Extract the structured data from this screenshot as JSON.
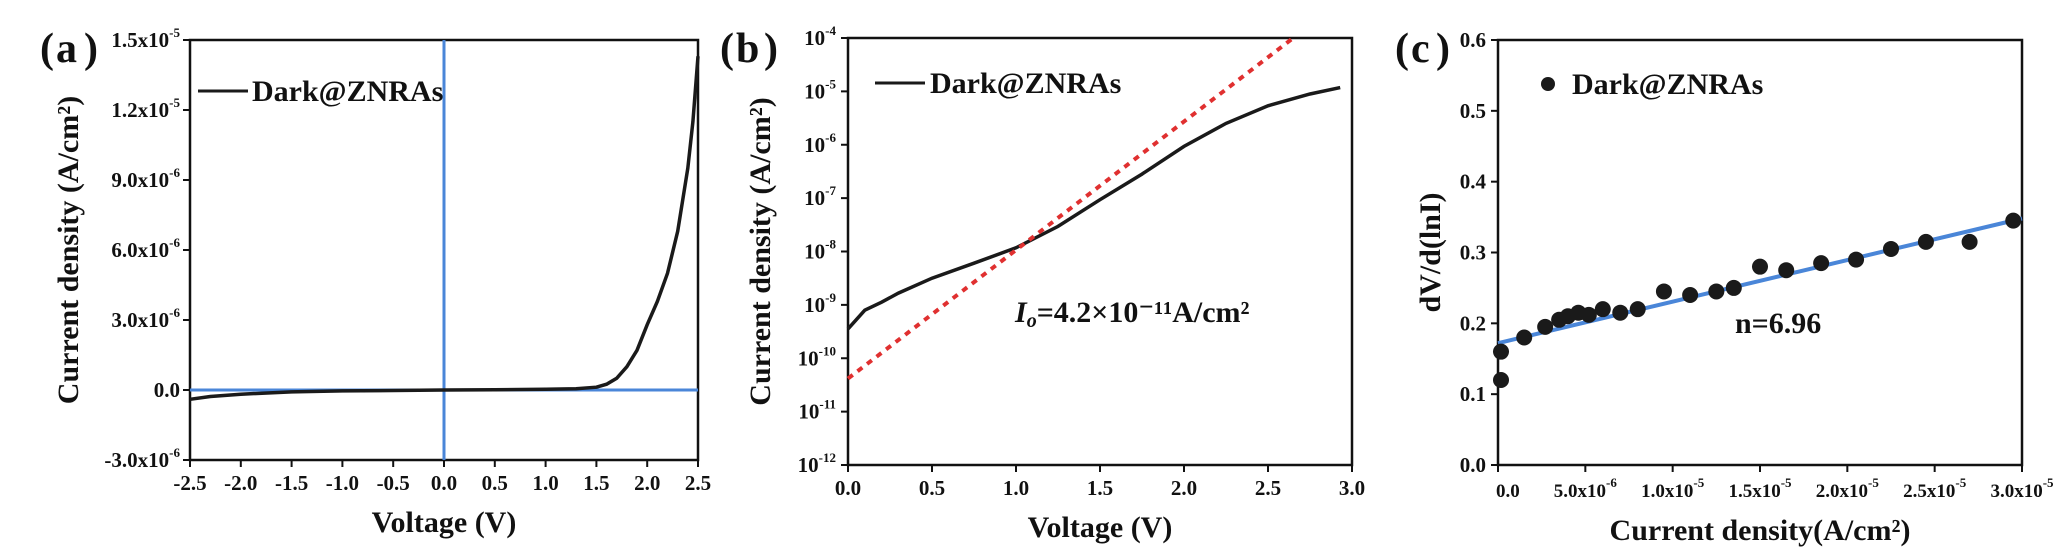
{
  "colors": {
    "curve": "#1a1a1a",
    "blue": "#4a86d8",
    "red": "#e03030"
  },
  "chart_data": [
    {
      "type": "line",
      "panel": "(a)",
      "panel_letter": "a",
      "xlabel": "Voltage (V)",
      "ylabel": "Current density (A/cm²)",
      "xlim": [
        -2.5,
        2.5
      ],
      "ylim": [
        -3e-06,
        1.5e-05
      ],
      "xticks": [
        "-2.5",
        "-2.0",
        "-1.5",
        "-1.0",
        "-0.5",
        "0.0",
        "0.5",
        "1.0",
        "1.5",
        "2.0",
        "2.5"
      ],
      "yticks": [
        {
          "mant": "-3.0x10",
          "exp": "-6"
        },
        {
          "mant": "0.0",
          "exp": ""
        },
        {
          "mant": "3.0x10",
          "exp": "-6"
        },
        {
          "mant": "6.0x10",
          "exp": "-6"
        },
        {
          "mant": "9.0x10",
          "exp": "-6"
        },
        {
          "mant": "1.2x10",
          "exp": "-5"
        },
        {
          "mant": "1.5x10",
          "exp": "-5"
        }
      ],
      "series": [
        {
          "name": "Dark@ZNRAs",
          "x": [
            -2.5,
            -2.3,
            -2.0,
            -1.5,
            -1.0,
            -0.5,
            0.0,
            0.5,
            1.0,
            1.3,
            1.5,
            1.6,
            1.7,
            1.8,
            1.9,
            2.0,
            2.1,
            2.2,
            2.3,
            2.4,
            2.45,
            2.5
          ],
          "y": [
            -4e-07,
            -2.8e-07,
            -1.8e-07,
            -8e-08,
            -4e-08,
            -2e-08,
            0,
            1e-08,
            3e-08,
            5e-08,
            1.2e-07,
            2.5e-07,
            5e-07,
            1e-06,
            1.7e-06,
            2.8e-06,
            3.8e-06,
            5e-06,
            6.8e-06,
            9.5e-06,
            1.15e-05,
            1.43e-05
          ]
        }
      ]
    },
    {
      "type": "line",
      "panel": "(b)",
      "panel_letter": "b",
      "xlabel": "Voltage (V)",
      "ylabel": "Current density (A/cm²)",
      "xlim": [
        0.0,
        3.0
      ],
      "ylim_log10": [
        -12,
        -4
      ],
      "yscale": "log",
      "xticks": [
        "0.0",
        "0.5",
        "1.0",
        "1.5",
        "2.0",
        "2.5",
        "3.0"
      ],
      "yticks_exp": [
        "-12",
        "-11",
        "-10",
        "-9",
        "-8",
        "-7",
        "-6",
        "-5",
        "-4"
      ],
      "ytick_base": "10",
      "annotation": {
        "prefix": "I",
        "sub": "o",
        "text": "=4.2×10⁻¹¹A/cm²"
      },
      "series": [
        {
          "name": "Dark@ZNRAs",
          "x": [
            0.0,
            0.1,
            0.2,
            0.3,
            0.5,
            0.75,
            1.0,
            1.25,
            1.5,
            1.75,
            2.0,
            2.25,
            2.5,
            2.75,
            2.93
          ],
          "log10y": [
            -9.45,
            -9.1,
            -8.95,
            -8.78,
            -8.5,
            -8.22,
            -7.93,
            -7.53,
            -7.03,
            -6.55,
            -6.03,
            -5.6,
            -5.27,
            -5.05,
            -4.93
          ]
        },
        {
          "name": "fit",
          "x": [
            0.0,
            2.65
          ],
          "log10y": [
            -10.38,
            -4.0
          ]
        }
      ]
    },
    {
      "type": "scatter",
      "panel": "(c)",
      "panel_letter": "c",
      "xlabel": "Current density(A/cm²)",
      "ylabel": "dV/d(lnI)",
      "xlim": [
        0.0,
        3e-05
      ],
      "ylim": [
        0.0,
        0.6
      ],
      "xticks": [
        {
          "mant": "0.0",
          "exp": ""
        },
        {
          "mant": "5.0x10",
          "exp": "-6"
        },
        {
          "mant": "1.0x10",
          "exp": "-5"
        },
        {
          "mant": "1.5x10",
          "exp": "-5"
        },
        {
          "mant": "2.0x10",
          "exp": "-5"
        },
        {
          "mant": "2.5x10",
          "exp": "-5"
        },
        {
          "mant": "3.0x10",
          "exp": "-5"
        }
      ],
      "yticks": [
        "0.0",
        "0.1",
        "0.2",
        "0.3",
        "0.4",
        "0.5",
        "0.6"
      ],
      "annotation": "n=6.96",
      "series": [
        {
          "name": "Dark@ZNRAs",
          "x": [
            0.0,
            0.0,
            1.5e-06,
            2.7e-06,
            3.5e-06,
            4e-06,
            4.6e-06,
            5.2e-06,
            6e-06,
            7e-06,
            8e-06,
            9.5e-06,
            1.1e-05,
            1.25e-05,
            1.35e-05,
            1.5e-05,
            1.65e-05,
            1.85e-05,
            2.05e-05,
            2.25e-05,
            2.45e-05,
            2.7e-05,
            2.95e-05
          ],
          "y": [
            0.12,
            0.16,
            0.18,
            0.195,
            0.205,
            0.21,
            0.215,
            0.212,
            0.22,
            0.215,
            0.22,
            0.245,
            0.24,
            0.245,
            0.25,
            0.28,
            0.275,
            0.285,
            0.29,
            0.305,
            0.315,
            0.315,
            0.345
          ]
        },
        {
          "name": "fit",
          "x": [
            0.0,
            3e-05
          ],
          "y": [
            0.172,
            0.348
          ]
        }
      ]
    }
  ]
}
